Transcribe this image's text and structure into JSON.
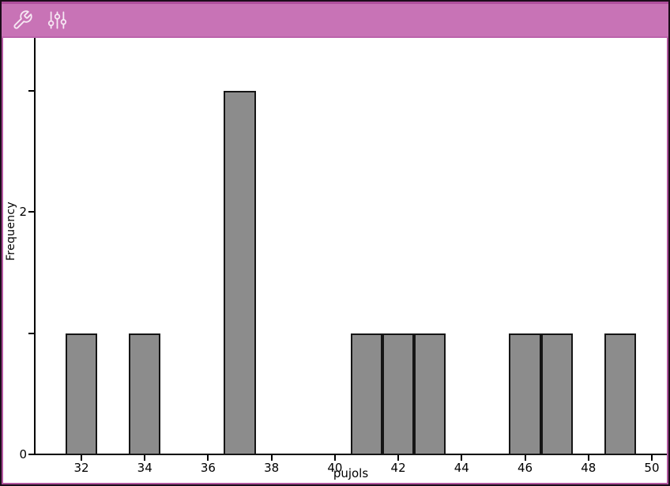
{
  "app": {
    "name": "data-statistics-histogram-view"
  },
  "toolbar": {
    "background": "#c873b6",
    "buttons": [
      {
        "label": "",
        "icon": "wrench-icon"
      },
      {
        "label": "",
        "icon": "sliders-icon"
      }
    ]
  },
  "colors": {
    "toolbar_pink": "#c873b6",
    "toolbar_top_edge": "#b04f9e",
    "frame_magenta": "#b2569f",
    "frame_dark": "#1c0c1a",
    "bar_fill": "#8c8c8c",
    "bar_stroke": "#151515",
    "axis": "#000000",
    "icon_stroke": "#f6e7f3"
  },
  "chart_data": {
    "type": "histogram",
    "title": "",
    "xlabel": "pujols",
    "ylabel": "Frequency",
    "bin_width": 1,
    "bins": [
      {
        "center": 32,
        "frequency": 1
      },
      {
        "center": 34,
        "frequency": 1
      },
      {
        "center": 37,
        "frequency": 3
      },
      {
        "center": 41,
        "frequency": 1
      },
      {
        "center": 42,
        "frequency": 1
      },
      {
        "center": 43,
        "frequency": 1
      },
      {
        "center": 46,
        "frequency": 1
      },
      {
        "center": 47,
        "frequency": 1
      },
      {
        "center": 49,
        "frequency": 1
      }
    ],
    "values_depicted": [
      32,
      34,
      37,
      37,
      37,
      41,
      42,
      43,
      46,
      47,
      49
    ],
    "x_ticks": [
      32,
      34,
      36,
      38,
      40,
      42,
      44,
      46,
      48,
      50
    ],
    "y_ticks": [
      {
        "value": 0,
        "label": "0"
      },
      {
        "value": 1,
        "label": ""
      },
      {
        "value": 2,
        "label": "2"
      },
      {
        "value": 3,
        "label": ""
      }
    ],
    "xlim": [
      30.5,
      50.6
    ],
    "ylim": [
      0,
      3.43
    ],
    "grid": false,
    "legend": false
  }
}
